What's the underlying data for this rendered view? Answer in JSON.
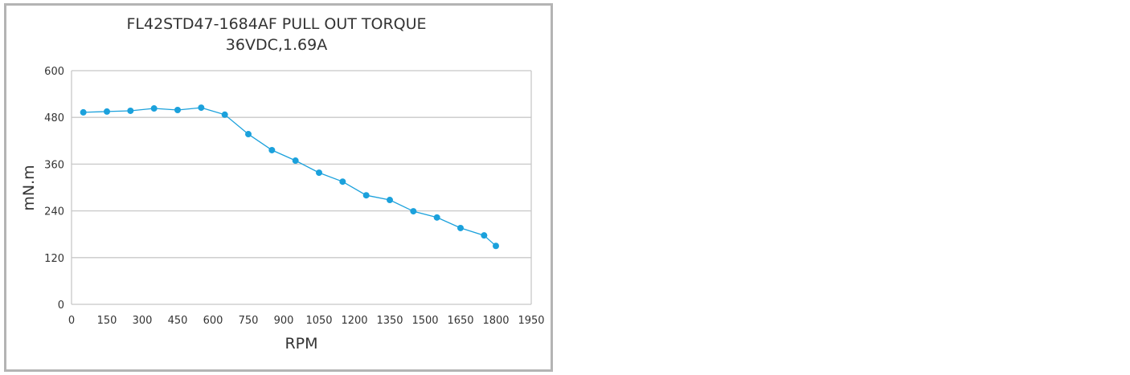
{
  "chart_data": {
    "type": "line",
    "title": "FL42STD47-1684AF PULL OUT TORQUE",
    "subtitle": "36VDC,1.69A",
    "xlabel": "RPM",
    "ylabel": "mN.m",
    "xlim": [
      0,
      1950
    ],
    "ylim": [
      0,
      600
    ],
    "xticks": [
      0,
      150,
      300,
      450,
      600,
      750,
      900,
      1050,
      1200,
      1350,
      1500,
      1650,
      1800,
      1950
    ],
    "yticks": [
      0,
      120,
      240,
      360,
      480,
      600
    ],
    "grid": "horizontal",
    "color": "#1ba1dc",
    "x": [
      50,
      150,
      250,
      350,
      450,
      550,
      650,
      750,
      850,
      950,
      1050,
      1150,
      1250,
      1350,
      1450,
      1550,
      1650,
      1750,
      1800
    ],
    "y": [
      493,
      495,
      497,
      503,
      499,
      505,
      487,
      437,
      396,
      369,
      338,
      315,
      280,
      268,
      239,
      223,
      196,
      177,
      150
    ]
  }
}
